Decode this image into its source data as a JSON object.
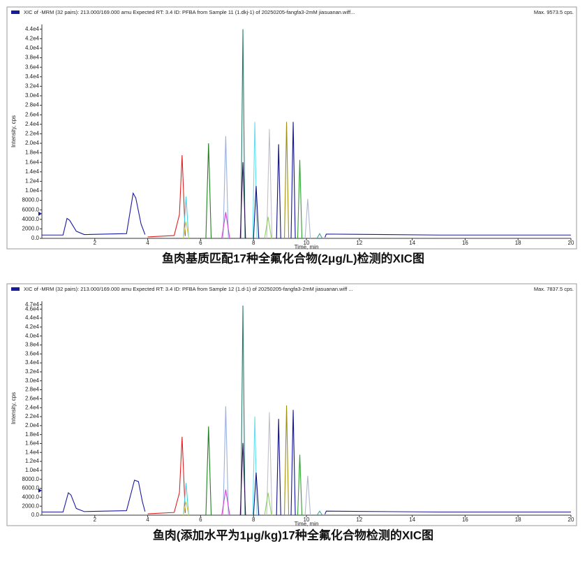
{
  "chart_data": [
    {
      "type": "line",
      "title": "XIC of -MRM (32 pairs): 213.000/169.000 amu Expected RT: 3.4 ID: PFBA from Sample 11 (1.dkj-1) of 20250205-fangfa3-2mM jiasuanan.wiff...",
      "annotation": "Max. 9573.5 cps.",
      "ylabel": "Intensity, cps",
      "xlabel": "Time, min",
      "caption": "鱼肉基质匹配17种全氟化合物(2μg/L)检测的XIC图",
      "xlim": [
        0,
        20
      ],
      "ylim": [
        0,
        45000
      ],
      "xticks": [
        2,
        4,
        6,
        8,
        10,
        12,
        14,
        16,
        18,
        20
      ],
      "yticks": [
        {
          "value": 0,
          "label": "0.0"
        },
        {
          "value": 2000,
          "label": "2000.0"
        },
        {
          "value": 4000,
          "label": "4000.0"
        },
        {
          "value": 6000,
          "label": "6000.0"
        },
        {
          "value": 8000,
          "label": "8000.0"
        },
        {
          "value": 10000,
          "label": "1.0e4"
        },
        {
          "value": 12000,
          "label": "1.2e4"
        },
        {
          "value": 14000,
          "label": "1.4e4"
        },
        {
          "value": 16000,
          "label": "1.6e4"
        },
        {
          "value": 18000,
          "label": "1.8e4"
        },
        {
          "value": 20000,
          "label": "2.0e4"
        },
        {
          "value": 22000,
          "label": "2.2e4"
        },
        {
          "value": 24000,
          "label": "2.4e4"
        },
        {
          "value": 26000,
          "label": "2.6e4"
        },
        {
          "value": 28000,
          "label": "2.8e4"
        },
        {
          "value": 30000,
          "label": "3.0e4"
        },
        {
          "value": 32000,
          "label": "3.2e4"
        },
        {
          "value": 34000,
          "label": "3.4e4"
        },
        {
          "value": 36000,
          "label": "3.6e4"
        },
        {
          "value": 38000,
          "label": "3.8e4"
        },
        {
          "value": 40000,
          "label": "4.0e4"
        },
        {
          "value": 42000,
          "label": "4.2e4"
        },
        {
          "value": 44000,
          "label": "4.4e4"
        }
      ],
      "series": [
        {
          "color": "#1a1aa0",
          "x": [
            0,
            0.8,
            0.95,
            1.05,
            1.3,
            1.6,
            3.2,
            3.45,
            3.55,
            3.75,
            3.9,
            4.0,
            10.7,
            10.75,
            13,
            15,
            17,
            20
          ],
          "values": [
            700,
            700,
            4200,
            3800,
            1500,
            800,
            1000,
            9500,
            8500,
            3000,
            800,
            null,
            200,
            900,
            800,
            700,
            700,
            700
          ]
        },
        {
          "color": "#e02020",
          "x": [
            4.0,
            5.0,
            5.2,
            5.3,
            5.42
          ],
          "values": [
            300,
            600,
            5000,
            17500,
            500
          ]
        },
        {
          "color": "#40d0e0",
          "x": [
            5.35,
            5.45,
            5.55
          ],
          "values": [
            0,
            8800,
            0
          ]
        },
        {
          "color": "#e0d040",
          "x": [
            5.35,
            5.45,
            5.55
          ],
          "values": [
            0,
            3500,
            0
          ]
        },
        {
          "color": "#208020",
          "x": [
            6.2,
            6.3,
            6.4
          ],
          "values": [
            0,
            20000,
            0
          ]
        },
        {
          "color": "#9ab0e0",
          "x": [
            6.85,
            6.95,
            7.05
          ],
          "values": [
            0,
            21500,
            0
          ]
        },
        {
          "color": "#d040d0",
          "x": [
            6.8,
            6.95,
            7.1
          ],
          "values": [
            0,
            5500,
            0
          ]
        },
        {
          "color": "#2a7a70",
          "x": [
            7.52,
            7.6,
            7.68
          ],
          "values": [
            0,
            44000,
            0
          ]
        },
        {
          "color": "#301050",
          "x": [
            7.5,
            7.6,
            7.7
          ],
          "values": [
            0,
            16000,
            0
          ]
        },
        {
          "color": "#60e0f0",
          "x": [
            7.97,
            8.05,
            8.13
          ],
          "values": [
            0,
            24500,
            0
          ]
        },
        {
          "color": "#101080",
          "x": [
            8.0,
            8.1,
            8.2
          ],
          "values": [
            0,
            11000,
            0
          ]
        },
        {
          "color": "#c0c0c8",
          "x": [
            8.5,
            8.6,
            8.7
          ],
          "values": [
            0,
            23000,
            0
          ]
        },
        {
          "color": "#90d060",
          "x": [
            8.42,
            8.55,
            8.68
          ],
          "values": [
            0,
            4500,
            0
          ]
        },
        {
          "color": "#101080",
          "x": [
            8.87,
            8.95,
            9.03
          ],
          "values": [
            0,
            19800,
            0
          ]
        },
        {
          "color": "#a09010",
          "x": [
            9.17,
            9.25,
            9.33
          ],
          "values": [
            0,
            24500,
            0
          ]
        },
        {
          "color": "#1010a0",
          "x": [
            9.42,
            9.5,
            9.58
          ],
          "values": [
            0,
            24500,
            0
          ]
        },
        {
          "color": "#30a030",
          "x": [
            9.67,
            9.75,
            9.83
          ],
          "values": [
            0,
            16500,
            0
          ]
        },
        {
          "color": "#b0b8d0",
          "x": [
            9.95,
            10.05,
            10.15
          ],
          "values": [
            0,
            8300,
            0
          ]
        },
        {
          "color": "#40a0a0",
          "x": [
            10.4,
            10.5,
            10.6
          ],
          "values": [
            0,
            1000,
            0
          ]
        }
      ]
    },
    {
      "type": "line",
      "title": "XIC of -MRM (32 pairs): 213.000/169.000 amu Expected RT: 3.4 ID: PFBA from Sample 12 (1.d-1) of 20250205-fangfa3-2mM jiasuanan.wiff ...",
      "annotation": "Max. 7837.5 cps.",
      "ylabel": "Intensity, cps",
      "xlabel": "Time, min",
      "caption": "鱼肉(添加水平为1μg/kg)17种全氟化合物检测的XIC图",
      "xlim": [
        0,
        20
      ],
      "ylim": [
        0,
        47750
      ],
      "xticks": [
        2,
        4,
        6,
        8,
        10,
        12,
        14,
        16,
        18,
        20
      ],
      "yticks": [
        {
          "value": 0,
          "label": "0.0"
        },
        {
          "value": 2000,
          "label": "2000.0"
        },
        {
          "value": 4000,
          "label": "4000.0"
        },
        {
          "value": 6000,
          "label": "6000.0"
        },
        {
          "value": 8000,
          "label": "8000.0"
        },
        {
          "value": 10000,
          "label": "1.0e4"
        },
        {
          "value": 12000,
          "label": "1.2e4"
        },
        {
          "value": 14000,
          "label": "1.4e4"
        },
        {
          "value": 16000,
          "label": "1.6e4"
        },
        {
          "value": 18000,
          "label": "1.8e4"
        },
        {
          "value": 20000,
          "label": "2.0e4"
        },
        {
          "value": 22000,
          "label": "2.2e4"
        },
        {
          "value": 24000,
          "label": "2.4e4"
        },
        {
          "value": 26000,
          "label": "2.6e4"
        },
        {
          "value": 28000,
          "label": "2.8e4"
        },
        {
          "value": 30000,
          "label": "3.0e4"
        },
        {
          "value": 32000,
          "label": "3.2e4"
        },
        {
          "value": 34000,
          "label": "3.4e4"
        },
        {
          "value": 36000,
          "label": "3.6e4"
        },
        {
          "value": 38000,
          "label": "3.8e4"
        },
        {
          "value": 40000,
          "label": "4.0e4"
        },
        {
          "value": 42000,
          "label": "4.2e4"
        },
        {
          "value": 44000,
          "label": "4.4e4"
        },
        {
          "value": 46000,
          "label": "4.6e4"
        },
        {
          "value": 47000,
          "label": "4.7e4"
        }
      ],
      "series": [
        {
          "color": "#1a1aa0",
          "x": [
            0,
            0.8,
            1.0,
            1.1,
            1.3,
            1.6,
            3.2,
            3.5,
            3.65,
            3.8,
            3.9,
            4.0,
            10.7,
            10.75,
            13,
            15,
            17,
            20
          ],
          "values": [
            700,
            700,
            5000,
            4500,
            1500,
            800,
            1000,
            7800,
            7500,
            3000,
            800,
            null,
            200,
            900,
            800,
            700,
            700,
            700
          ]
        },
        {
          "color": "#e02020",
          "x": [
            4.0,
            5.0,
            5.2,
            5.3,
            5.42
          ],
          "values": [
            300,
            600,
            5000,
            17500,
            500
          ]
        },
        {
          "color": "#40d0e0",
          "x": [
            5.35,
            5.45,
            5.55
          ],
          "values": [
            0,
            7200,
            0
          ]
        },
        {
          "color": "#e0d040",
          "x": [
            5.35,
            5.45,
            5.55
          ],
          "values": [
            0,
            3000,
            0
          ]
        },
        {
          "color": "#208020",
          "x": [
            6.2,
            6.3,
            6.4
          ],
          "values": [
            0,
            19800,
            0
          ]
        },
        {
          "color": "#9ab0e0",
          "x": [
            6.85,
            6.95,
            7.05
          ],
          "values": [
            0,
            24300,
            0
          ]
        },
        {
          "color": "#d040d0",
          "x": [
            6.8,
            6.95,
            7.1
          ],
          "values": [
            0,
            5700,
            0
          ]
        },
        {
          "color": "#2a7a70",
          "x": [
            7.52,
            7.6,
            7.68
          ],
          "values": [
            0,
            46800,
            0
          ]
        },
        {
          "color": "#301050",
          "x": [
            7.5,
            7.6,
            7.7
          ],
          "values": [
            0,
            16100,
            0
          ]
        },
        {
          "color": "#60e0f0",
          "x": [
            7.97,
            8.05,
            8.13
          ],
          "values": [
            0,
            22000,
            0
          ]
        },
        {
          "color": "#101080",
          "x": [
            8.0,
            8.1,
            8.2
          ],
          "values": [
            0,
            9500,
            0
          ]
        },
        {
          "color": "#c0c0c8",
          "x": [
            8.5,
            8.6,
            8.7
          ],
          "values": [
            0,
            23000,
            0
          ]
        },
        {
          "color": "#90d060",
          "x": [
            8.42,
            8.55,
            8.68
          ],
          "values": [
            0,
            5000,
            0
          ]
        },
        {
          "color": "#101080",
          "x": [
            8.87,
            8.95,
            9.03
          ],
          "values": [
            0,
            21500,
            0
          ]
        },
        {
          "color": "#a09010",
          "x": [
            9.17,
            9.25,
            9.33
          ],
          "values": [
            0,
            24500,
            0
          ]
        },
        {
          "color": "#1010a0",
          "x": [
            9.42,
            9.5,
            9.58
          ],
          "values": [
            0,
            23500,
            0
          ]
        },
        {
          "color": "#30a030",
          "x": [
            9.67,
            9.75,
            9.83
          ],
          "values": [
            0,
            13500,
            0
          ]
        },
        {
          "color": "#b0b8d0",
          "x": [
            9.95,
            10.05,
            10.15
          ],
          "values": [
            0,
            8800,
            0
          ]
        },
        {
          "color": "#40a0a0",
          "x": [
            10.4,
            10.5,
            10.6
          ],
          "values": [
            0,
            900,
            0
          ]
        }
      ]
    }
  ]
}
